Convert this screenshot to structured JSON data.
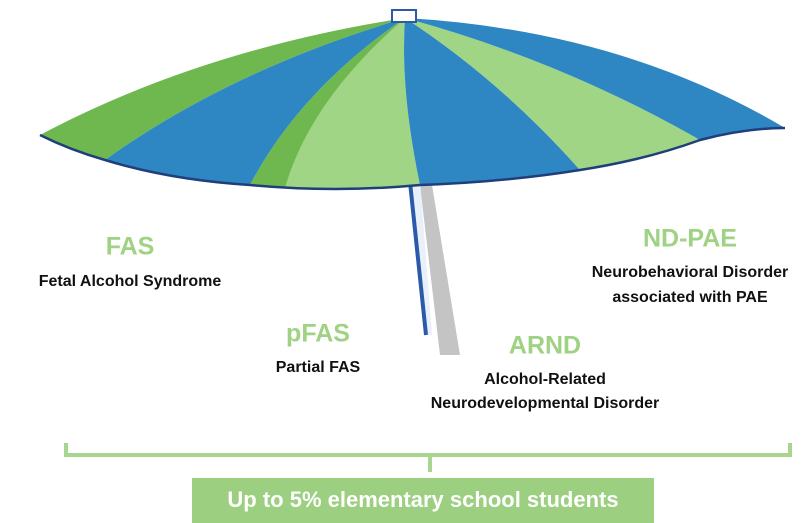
{
  "types": [
    {
      "abbr": "FAS",
      "lines": [
        "Fetal Alcohol Syndrome"
      ]
    },
    {
      "abbr": "pFAS",
      "lines": [
        "Partial FAS"
      ]
    },
    {
      "abbr": "ARND",
      "lines": [
        "Alcohol-Related",
        "Neurodevelopmental Disorder"
      ]
    },
    {
      "abbr": "ND-PAE",
      "lines": [
        "Neurobehavioral Disorder",
        "associated with PAE"
      ]
    }
  ],
  "footer": "Up to 5% elementary school students"
}
